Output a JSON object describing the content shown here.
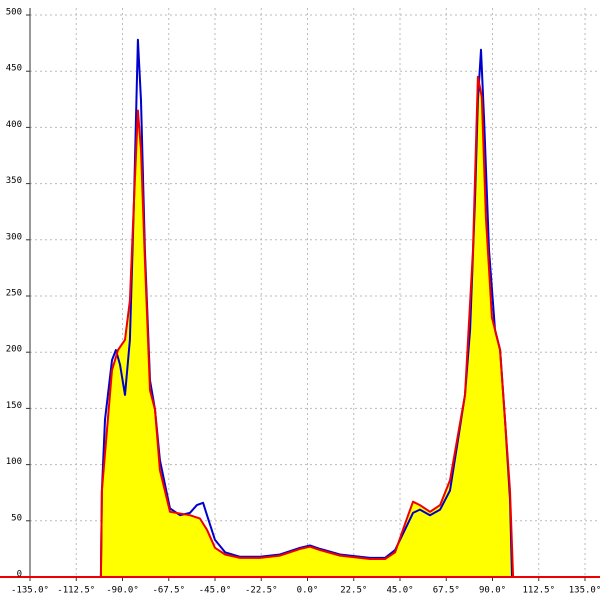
{
  "chart_data": {
    "type": "line",
    "xlim": [
      -135,
      135
    ],
    "ylim": [
      0,
      500
    ],
    "xticks": [
      {
        "value": -135,
        "label": "-135.0°"
      },
      {
        "value": -112.5,
        "label": "-112.5°"
      },
      {
        "value": -90,
        "label": "-90.0°"
      },
      {
        "value": -67.5,
        "label": "-67.5°"
      },
      {
        "value": -45,
        "label": "-45.0°"
      },
      {
        "value": -22.5,
        "label": "-22.5°"
      },
      {
        "value": 0,
        "label": "0.0°"
      },
      {
        "value": 22.5,
        "label": "22.5°"
      },
      {
        "value": 45,
        "label": "45.0°"
      },
      {
        "value": 67.5,
        "label": "67.5°"
      },
      {
        "value": 90,
        "label": "90.0°"
      },
      {
        "value": 112.5,
        "label": "112.5°"
      },
      {
        "value": 135,
        "label": "135.0°"
      }
    ],
    "yticks": [
      0,
      50,
      100,
      150,
      200,
      250,
      300,
      350,
      400,
      450,
      500
    ],
    "grid": true,
    "series": [
      {
        "color": "#0000cc",
        "x": [
          -100.5,
          -100,
          -98.5,
          -95.1,
          -93.2,
          -91.2,
          -88.8,
          -86.4,
          -84.4,
          -82.5,
          -81,
          -79.1,
          -76.6,
          -74.2,
          -71.8,
          -66.9,
          -62,
          -57.2,
          -53.8,
          -50.8,
          -48.9,
          -45,
          -40.1,
          -32.8,
          -23.1,
          -13.4,
          -3.6,
          1.2,
          6.1,
          15.8,
          30.4,
          37.7,
          42.6,
          47.4,
          51.3,
          54.7,
          59.6,
          64.5,
          69.3,
          73.2,
          76.6,
          79.1,
          81.5,
          82.9,
          84.4,
          85.9,
          88.3,
          91.2,
          93.7,
          96.1,
          98.5,
          99.5
        ],
        "values": [
          0,
          77,
          140,
          193,
          202,
          189,
          162,
          211,
          335,
          478,
          424,
          291,
          175,
          149,
          104,
          61,
          55,
          57,
          64,
          66,
          55,
          33,
          22,
          18,
          18,
          20,
          26,
          28,
          25,
          20,
          17,
          17,
          24,
          42,
          57,
          60,
          55,
          60,
          77,
          122,
          162,
          220,
          335,
          424,
          469,
          407,
          291,
          220,
          202,
          140,
          69,
          0
        ]
      },
      {
        "color": "#ee0000",
        "fill": "#ffff00",
        "x": [
          -100.5,
          -100,
          -95.1,
          -92.2,
          -88.8,
          -86.4,
          -84.4,
          -82.5,
          -81,
          -79.1,
          -76.6,
          -74.2,
          -71.8,
          -66.9,
          -57.2,
          -52.3,
          -48.9,
          -45,
          -40.1,
          -32.8,
          -23.1,
          -13.4,
          -3.6,
          1.2,
          6.1,
          15.8,
          30.4,
          37.7,
          42.6,
          47.4,
          51.3,
          54.7,
          59.6,
          64.5,
          69.3,
          76.6,
          80.5,
          82.9,
          84.8,
          86.8,
          89.7,
          93.7,
          98.5,
          100
        ],
        "values": [
          0,
          77,
          184,
          202,
          211,
          246,
          335,
          415,
          380,
          282,
          166,
          149,
          95,
          58,
          55,
          52,
          42,
          26,
          20,
          17,
          17,
          19,
          25,
          27,
          24,
          19,
          16,
          16,
          22,
          47,
          67,
          64,
          58,
          64,
          86,
          162,
          291,
          445,
          427,
          320,
          231,
          202,
          77,
          0
        ]
      }
    ]
  }
}
